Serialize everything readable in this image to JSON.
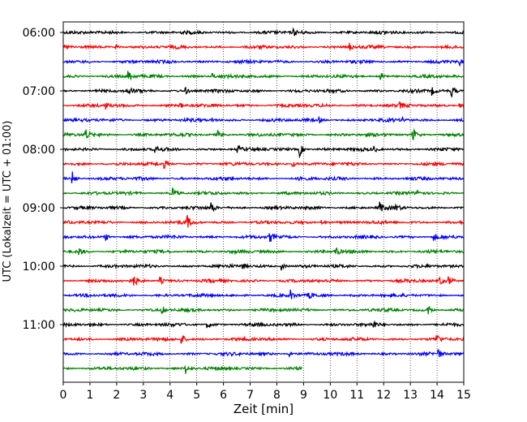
{
  "chart_data": {
    "type": "line",
    "subtype": "helicorder",
    "xlabel": "Zeit  [min]",
    "ylabel": "UTC (Lokalzeit = UTC + 01:00)",
    "xlim": [
      0,
      15
    ],
    "x_ticks": [
      0,
      1,
      2,
      3,
      4,
      5,
      6,
      7,
      8,
      9,
      10,
      11,
      12,
      13,
      14,
      15
    ],
    "x_tick_labels": [
      "0",
      "1",
      "2",
      "3",
      "4",
      "5",
      "6",
      "7",
      "8",
      "9",
      "10",
      "11",
      "12",
      "13",
      "14",
      "15"
    ],
    "y_tick_labels": [
      "06:00",
      "07:00",
      "08:00",
      "09:00",
      "10:00",
      "11:00"
    ],
    "vertical_grid": "dotted",
    "trace_colors": [
      "#000000",
      "#ff0000",
      "#0000ff",
      "#008000"
    ],
    "traces": [
      {
        "start": "06:00",
        "end_min": 15,
        "events": [
          [
            8.65,
            0.45
          ]
        ]
      },
      {
        "start": "06:15",
        "end_min": 15,
        "events": [
          [
            1.95,
            0.5
          ],
          [
            10.7,
            0.7
          ]
        ]
      },
      {
        "start": "06:30",
        "end_min": 15,
        "events": [
          [
            14.85,
            0.5
          ]
        ]
      },
      {
        "start": "06:45",
        "end_min": 15,
        "events": [
          [
            2.45,
            1.0
          ],
          [
            5.6,
            0.4
          ],
          [
            11.9,
            0.45
          ]
        ]
      },
      {
        "start": "07:00",
        "end_min": 15,
        "events": [
          [
            2.45,
            0.6
          ],
          [
            4.6,
            0.4
          ],
          [
            13.8,
            0.6
          ],
          [
            14.55,
            0.8
          ]
        ]
      },
      {
        "start": "07:15",
        "end_min": 15,
        "events": [
          [
            1.6,
            0.4
          ],
          [
            4.4,
            0.4
          ],
          [
            12.6,
            0.4
          ],
          [
            14.85,
            0.4
          ]
        ]
      },
      {
        "start": "07:30",
        "end_min": 15,
        "events": [
          [
            5.55,
            0.4
          ],
          [
            9.6,
            0.4
          ],
          [
            12.7,
            0.4
          ]
        ]
      },
      {
        "start": "07:45",
        "end_min": 15,
        "events": [
          [
            0.85,
            0.9
          ],
          [
            5.8,
            0.6
          ],
          [
            13.1,
            1.0
          ]
        ]
      },
      {
        "start": "08:00",
        "end_min": 15,
        "events": [
          [
            3.45,
            0.5
          ],
          [
            6.55,
            0.45
          ],
          [
            8.85,
            1.2
          ],
          [
            11.65,
            0.4
          ]
        ]
      },
      {
        "start": "08:15",
        "end_min": 15,
        "events": [
          [
            3.8,
            0.5
          ],
          [
            8.6,
            0.45
          ]
        ]
      },
      {
        "start": "08:30",
        "end_min": 15,
        "events": [
          [
            0.35,
            1.0
          ],
          [
            8.85,
            0.5
          ]
        ]
      },
      {
        "start": "08:45",
        "end_min": 15,
        "events": [
          [
            4.1,
            0.8
          ],
          [
            13.3,
            0.5
          ]
        ]
      },
      {
        "start": "09:00",
        "end_min": 15,
        "events": [
          [
            5.55,
            1.0
          ],
          [
            11.85,
            0.9
          ],
          [
            12.45,
            0.5
          ]
        ]
      },
      {
        "start": "09:15",
        "end_min": 15,
        "events": [
          [
            4.65,
            0.9
          ],
          [
            9.7,
            0.4
          ]
        ]
      },
      {
        "start": "09:30",
        "end_min": 15,
        "events": [
          [
            1.6,
            0.6
          ],
          [
            7.75,
            0.8
          ],
          [
            13.9,
            0.5
          ]
        ]
      },
      {
        "start": "09:45",
        "end_min": 15,
        "events": [
          [
            0.6,
            0.6
          ],
          [
            10.2,
            0.7
          ]
        ]
      },
      {
        "start": "10:00",
        "end_min": 15,
        "events": [
          [
            6.7,
            0.5
          ],
          [
            8.2,
            0.6
          ]
        ]
      },
      {
        "start": "10:15",
        "end_min": 15,
        "events": [
          [
            2.65,
            0.7
          ],
          [
            3.6,
            0.8
          ],
          [
            14.1,
            0.6
          ],
          [
            14.45,
            0.6
          ]
        ]
      },
      {
        "start": "10:30",
        "end_min": 15,
        "events": [
          [
            8.5,
            0.8
          ],
          [
            9.2,
            0.45
          ]
        ]
      },
      {
        "start": "10:45",
        "end_min": 15,
        "events": [
          [
            3.7,
            0.6
          ],
          [
            13.65,
            0.8
          ]
        ]
      },
      {
        "start": "11:00",
        "end_min": 15,
        "events": [
          [
            5.4,
            0.45
          ],
          [
            11.65,
            0.4
          ]
        ]
      },
      {
        "start": "11:15",
        "end_min": 15,
        "events": [
          [
            4.45,
            0.8
          ],
          [
            14.0,
            0.6
          ]
        ]
      },
      {
        "start": "11:30",
        "end_min": 15,
        "events": [
          [
            8.4,
            0.7
          ],
          [
            14.05,
            0.7
          ]
        ]
      },
      {
        "start": "11:45",
        "end_min": 8.95,
        "events": [
          [
            4.6,
            0.8
          ]
        ]
      }
    ]
  }
}
